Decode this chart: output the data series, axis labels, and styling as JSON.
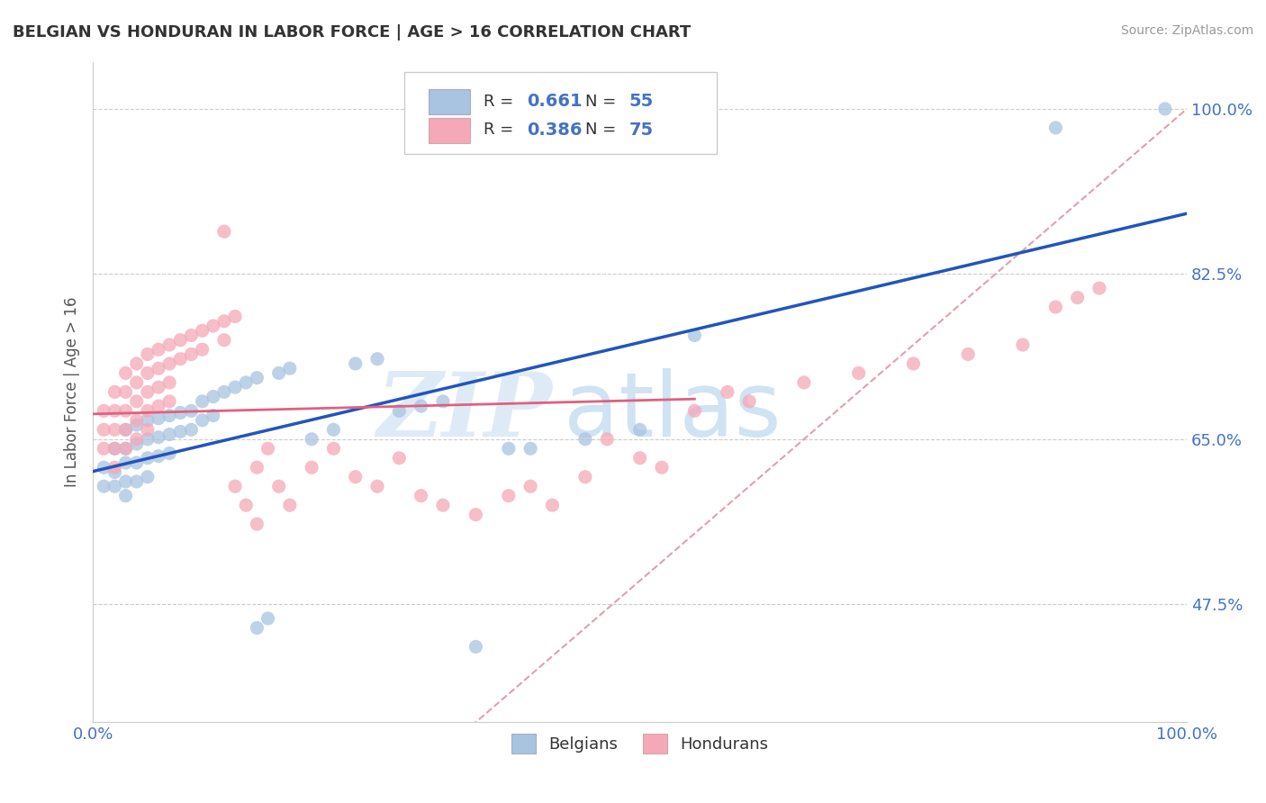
{
  "title": "BELGIAN VS HONDURAN IN LABOR FORCE | AGE > 16 CORRELATION CHART",
  "source": "Source: ZipAtlas.com",
  "ylabel": "In Labor Force | Age > 16",
  "xlim": [
    0.0,
    1.0
  ],
  "ylim": [
    0.35,
    1.05
  ],
  "yticks": [
    0.475,
    0.65,
    0.825,
    1.0
  ],
  "ytick_labels": [
    "47.5%",
    "65.0%",
    "82.5%",
    "100.0%"
  ],
  "belgian_color": "#a8c4e0",
  "honduran_color": "#f4a8b8",
  "line_belgian_color": "#2255bb",
  "line_honduran_color": "#e06080",
  "diagonal_color": "#e0a0b0",
  "R_belgian": 0.661,
  "N_belgian": 55,
  "R_honduran": 0.386,
  "N_honduran": 75,
  "watermark_zip": "ZIP",
  "watermark_atlas": "atlas",
  "background_color": "#ffffff",
  "title_color": "#333333",
  "axis_label_color": "#555555",
  "tick_color": "#4472c4",
  "grid_color": "#cccccc",
  "belgian_points": [
    [
      0.01,
      0.62
    ],
    [
      0.01,
      0.6
    ],
    [
      0.02,
      0.64
    ],
    [
      0.02,
      0.615
    ],
    [
      0.02,
      0.6
    ],
    [
      0.03,
      0.66
    ],
    [
      0.03,
      0.64
    ],
    [
      0.03,
      0.625
    ],
    [
      0.03,
      0.605
    ],
    [
      0.03,
      0.59
    ],
    [
      0.04,
      0.665
    ],
    [
      0.04,
      0.645
    ],
    [
      0.04,
      0.625
    ],
    [
      0.04,
      0.605
    ],
    [
      0.05,
      0.67
    ],
    [
      0.05,
      0.65
    ],
    [
      0.05,
      0.63
    ],
    [
      0.05,
      0.61
    ],
    [
      0.06,
      0.672
    ],
    [
      0.06,
      0.652
    ],
    [
      0.06,
      0.632
    ],
    [
      0.07,
      0.675
    ],
    [
      0.07,
      0.655
    ],
    [
      0.07,
      0.635
    ],
    [
      0.08,
      0.678
    ],
    [
      0.08,
      0.658
    ],
    [
      0.09,
      0.68
    ],
    [
      0.09,
      0.66
    ],
    [
      0.1,
      0.69
    ],
    [
      0.1,
      0.67
    ],
    [
      0.11,
      0.695
    ],
    [
      0.11,
      0.675
    ],
    [
      0.12,
      0.7
    ],
    [
      0.13,
      0.705
    ],
    [
      0.14,
      0.71
    ],
    [
      0.15,
      0.715
    ],
    [
      0.15,
      0.45
    ],
    [
      0.16,
      0.46
    ],
    [
      0.17,
      0.72
    ],
    [
      0.18,
      0.725
    ],
    [
      0.2,
      0.65
    ],
    [
      0.22,
      0.66
    ],
    [
      0.24,
      0.73
    ],
    [
      0.26,
      0.735
    ],
    [
      0.28,
      0.68
    ],
    [
      0.3,
      0.685
    ],
    [
      0.32,
      0.69
    ],
    [
      0.35,
      0.43
    ],
    [
      0.38,
      0.64
    ],
    [
      0.4,
      0.64
    ],
    [
      0.45,
      0.65
    ],
    [
      0.5,
      0.66
    ],
    [
      0.55,
      0.76
    ],
    [
      0.88,
      0.98
    ],
    [
      0.98,
      1.0
    ]
  ],
  "honduran_points": [
    [
      0.01,
      0.68
    ],
    [
      0.01,
      0.66
    ],
    [
      0.01,
      0.64
    ],
    [
      0.02,
      0.7
    ],
    [
      0.02,
      0.68
    ],
    [
      0.02,
      0.66
    ],
    [
      0.02,
      0.64
    ],
    [
      0.02,
      0.62
    ],
    [
      0.03,
      0.72
    ],
    [
      0.03,
      0.7
    ],
    [
      0.03,
      0.68
    ],
    [
      0.03,
      0.66
    ],
    [
      0.03,
      0.64
    ],
    [
      0.04,
      0.73
    ],
    [
      0.04,
      0.71
    ],
    [
      0.04,
      0.69
    ],
    [
      0.04,
      0.67
    ],
    [
      0.04,
      0.65
    ],
    [
      0.05,
      0.74
    ],
    [
      0.05,
      0.72
    ],
    [
      0.05,
      0.7
    ],
    [
      0.05,
      0.68
    ],
    [
      0.05,
      0.66
    ],
    [
      0.06,
      0.745
    ],
    [
      0.06,
      0.725
    ],
    [
      0.06,
      0.705
    ],
    [
      0.06,
      0.685
    ],
    [
      0.07,
      0.75
    ],
    [
      0.07,
      0.73
    ],
    [
      0.07,
      0.71
    ],
    [
      0.07,
      0.69
    ],
    [
      0.08,
      0.755
    ],
    [
      0.08,
      0.735
    ],
    [
      0.09,
      0.76
    ],
    [
      0.09,
      0.74
    ],
    [
      0.1,
      0.765
    ],
    [
      0.1,
      0.745
    ],
    [
      0.11,
      0.77
    ],
    [
      0.12,
      0.775
    ],
    [
      0.12,
      0.755
    ],
    [
      0.12,
      0.87
    ],
    [
      0.13,
      0.6
    ],
    [
      0.13,
      0.78
    ],
    [
      0.14,
      0.58
    ],
    [
      0.15,
      0.56
    ],
    [
      0.15,
      0.62
    ],
    [
      0.16,
      0.64
    ],
    [
      0.17,
      0.6
    ],
    [
      0.18,
      0.58
    ],
    [
      0.2,
      0.62
    ],
    [
      0.22,
      0.64
    ],
    [
      0.24,
      0.61
    ],
    [
      0.26,
      0.6
    ],
    [
      0.28,
      0.63
    ],
    [
      0.3,
      0.59
    ],
    [
      0.32,
      0.58
    ],
    [
      0.35,
      0.57
    ],
    [
      0.38,
      0.59
    ],
    [
      0.4,
      0.6
    ],
    [
      0.42,
      0.58
    ],
    [
      0.45,
      0.61
    ],
    [
      0.47,
      0.65
    ],
    [
      0.5,
      0.63
    ],
    [
      0.52,
      0.62
    ],
    [
      0.55,
      0.68
    ],
    [
      0.58,
      0.7
    ],
    [
      0.6,
      0.69
    ],
    [
      0.65,
      0.71
    ],
    [
      0.7,
      0.72
    ],
    [
      0.75,
      0.73
    ],
    [
      0.8,
      0.74
    ],
    [
      0.85,
      0.75
    ],
    [
      0.88,
      0.79
    ],
    [
      0.9,
      0.8
    ],
    [
      0.92,
      0.81
    ]
  ]
}
